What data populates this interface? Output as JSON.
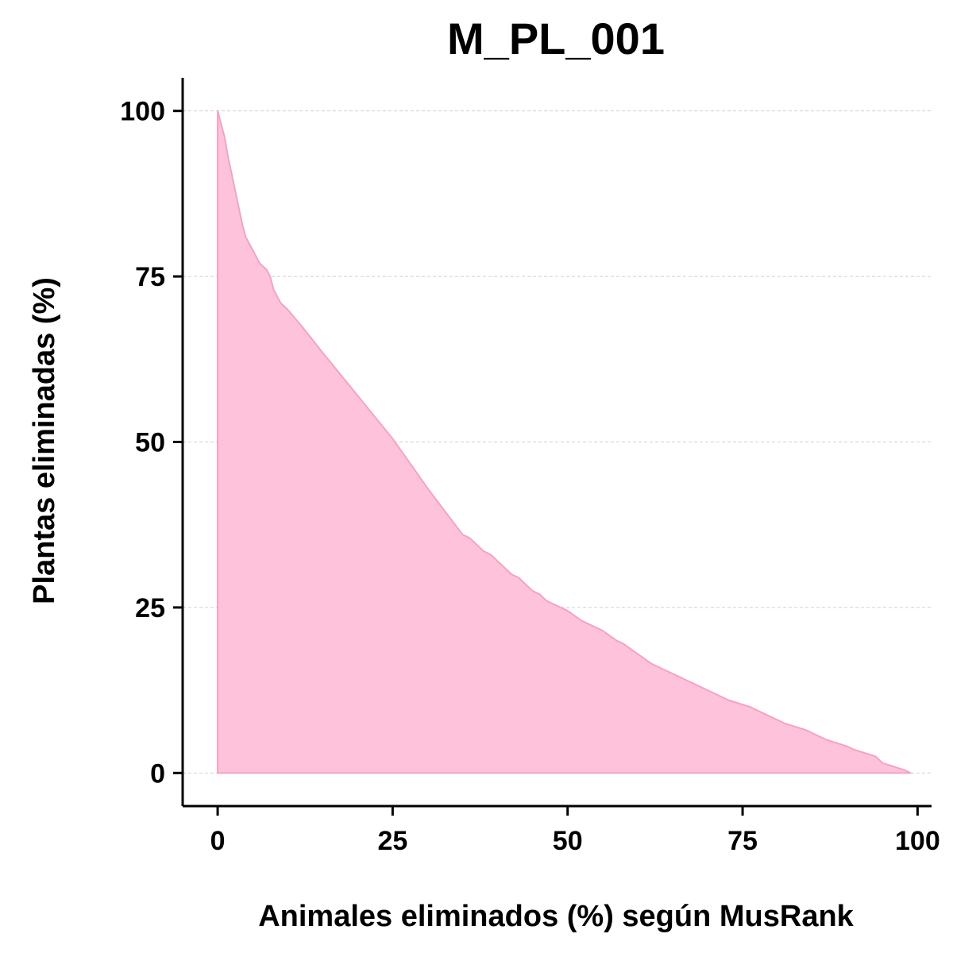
{
  "chart_data": {
    "type": "area",
    "title": "M_PL_001",
    "xlabel": "Animales eliminados (%) según MusRank",
    "ylabel": "Plantas eliminadas (%)",
    "xlim": [
      -5,
      102
    ],
    "ylim": [
      -5,
      105
    ],
    "xticks": [
      0,
      25,
      50,
      75,
      100
    ],
    "yticks": [
      0,
      25,
      50,
      75,
      100
    ],
    "grid": "horizontal-dashed",
    "legend": "none",
    "fill_color": "#FFC2DB",
    "line_color": "#F7A1C4",
    "x": [
      0,
      0.5,
      1,
      1.5,
      2,
      2.5,
      3,
      3.5,
      4,
      5,
      6,
      7,
      7.5,
      8,
      9,
      10,
      12,
      15,
      20,
      25,
      30,
      35,
      36,
      37,
      38,
      39,
      40,
      41,
      42,
      43,
      44,
      45,
      46,
      47,
      48,
      50,
      52,
      55,
      57,
      58,
      60,
      62,
      64,
      66,
      67,
      69,
      71,
      73,
      76,
      78,
      80,
      81,
      84,
      87,
      90,
      91,
      94,
      95,
      98,
      99
    ],
    "y": [
      100,
      98,
      96,
      93,
      90.5,
      88,
      85.5,
      83,
      81,
      79,
      77,
      76,
      75,
      73,
      71,
      70,
      67.5,
      63.5,
      57,
      50.5,
      43,
      36,
      35.5,
      34.5,
      33.5,
      33,
      32,
      31,
      30,
      29.5,
      28.5,
      27.5,
      27,
      26,
      25.5,
      24.5,
      23,
      21.5,
      20,
      19.5,
      18,
      16.5,
      15.5,
      14.5,
      14,
      13,
      12,
      11,
      10,
      9,
      8,
      7.5,
      6.5,
      5,
      4,
      3.5,
      2.5,
      1.5,
      0.5,
      0
    ]
  }
}
